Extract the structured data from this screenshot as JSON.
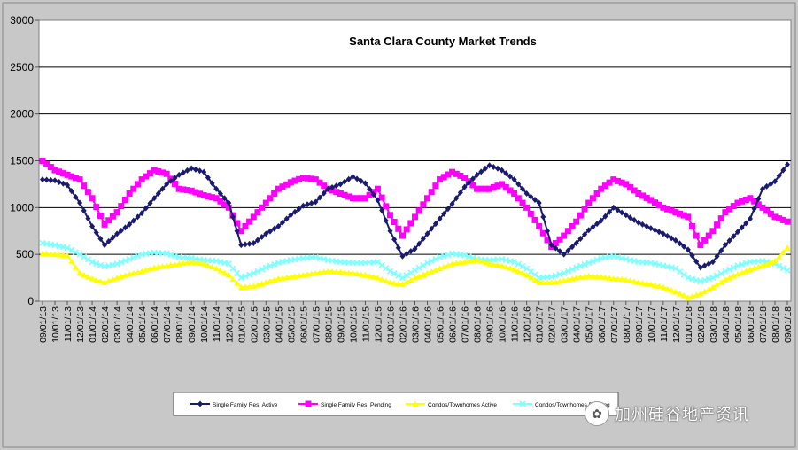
{
  "chart_data": {
    "type": "line",
    "title": "Santa Clara County Market Trends",
    "xlabel": "",
    "ylabel": "",
    "ylim": [
      0,
      3000
    ],
    "yticks": [
      0,
      500,
      1000,
      1500,
      2000,
      2500,
      3000
    ],
    "grid": true,
    "legend_position": "bottom",
    "x_tick_labels": [
      "09/01/13",
      "10/01/13",
      "11/01/13",
      "12/01/13",
      "01/01/14",
      "02/01/14",
      "03/01/14",
      "04/01/14",
      "05/01/14",
      "06/01/14",
      "07/01/14",
      "08/01/14",
      "09/01/14",
      "10/01/14",
      "11/01/14",
      "12/01/14",
      "01/01/15",
      "02/01/15",
      "03/01/15",
      "04/01/15",
      "05/01/15",
      "06/01/15",
      "07/01/15",
      "08/01/15",
      "09/01/15",
      "10/01/15",
      "11/01/15",
      "12/01/15",
      "01/01/16",
      "02/01/16",
      "03/01/16",
      "04/01/16",
      "05/01/16",
      "06/01/16",
      "07/01/16",
      "08/01/16",
      "09/01/16",
      "10/01/16",
      "11/01/16",
      "12/01/16",
      "01/01/17",
      "02/01/17",
      "03/01/17",
      "04/01/17",
      "05/01/17",
      "06/01/17",
      "07/01/17",
      "08/01/17",
      "09/01/17",
      "10/01/17",
      "11/01/17",
      "12/01/17",
      "01/01/18",
      "02/01/18",
      "03/01/18",
      "04/01/18",
      "05/01/18",
      "06/01/18",
      "07/01/18",
      "08/01/18",
      "09/01/18"
    ],
    "series": [
      {
        "name": "Single Family Res. Active",
        "color": "#1a1a6e",
        "marker": "diamond",
        "values": [
          1300,
          1290,
          1240,
          1050,
          800,
          600,
          720,
          820,
          940,
          1100,
          1250,
          1350,
          1420,
          1380,
          1200,
          1050,
          600,
          620,
          720,
          800,
          920,
          1020,
          1060,
          1200,
          1250,
          1330,
          1260,
          1080,
          750,
          480,
          560,
          720,
          880,
          1040,
          1220,
          1350,
          1450,
          1400,
          1300,
          1150,
          1050,
          600,
          500,
          620,
          760,
          860,
          1000,
          920,
          840,
          780,
          720,
          650,
          550,
          360,
          420,
          600,
          740,
          880,
          1200,
          1280,
          1460
        ]
      },
      {
        "name": "Single Family Res. Pending",
        "color": "#ff00ff",
        "marker": "square",
        "values": [
          1500,
          1400,
          1350,
          1300,
          1100,
          820,
          950,
          1150,
          1300,
          1400,
          1360,
          1200,
          1180,
          1130,
          1100,
          1000,
          750,
          900,
          1050,
          1200,
          1270,
          1320,
          1300,
          1200,
          1150,
          1100,
          1100,
          1200,
          920,
          700,
          900,
          1100,
          1300,
          1380,
          1320,
          1200,
          1200,
          1250,
          1150,
          1000,
          800,
          580,
          700,
          850,
          1050,
          1200,
          1300,
          1250,
          1150,
          1080,
          1000,
          950,
          900,
          600,
          750,
          950,
          1050,
          1100,
          1000,
          900,
          850
        ]
      },
      {
        "name": "Condos/Townhomes Active",
        "color": "#ffff00",
        "marker": "triangle",
        "values": [
          510,
          500,
          490,
          300,
          240,
          200,
          250,
          290,
          320,
          360,
          380,
          400,
          420,
          400,
          350,
          280,
          150,
          160,
          200,
          240,
          260,
          280,
          300,
          320,
          310,
          300,
          280,
          250,
          200,
          180,
          250,
          300,
          350,
          400,
          420,
          440,
          400,
          380,
          340,
          280,
          200,
          200,
          220,
          250,
          270,
          260,
          240,
          230,
          200,
          180,
          150,
          100,
          40,
          80,
          150,
          230,
          290,
          340,
          380,
          430,
          570
        ]
      },
      {
        "name": "Condos/Townhomes Pending",
        "color": "#7fffff",
        "marker": "x",
        "values": [
          620,
          600,
          570,
          500,
          420,
          370,
          400,
          450,
          500,
          520,
          510,
          470,
          460,
          440,
          430,
          400,
          250,
          300,
          360,
          410,
          440,
          460,
          470,
          440,
          420,
          410,
          410,
          420,
          320,
          250,
          330,
          410,
          470,
          510,
          490,
          450,
          440,
          450,
          420,
          350,
          250,
          260,
          300,
          360,
          410,
          460,
          480,
          450,
          420,
          410,
          380,
          350,
          250,
          210,
          250,
          320,
          380,
          420,
          430,
          400,
          330
        ]
      }
    ]
  },
  "watermark": {
    "text": "加州硅谷地产资讯",
    "icon": "wechat-icon"
  }
}
